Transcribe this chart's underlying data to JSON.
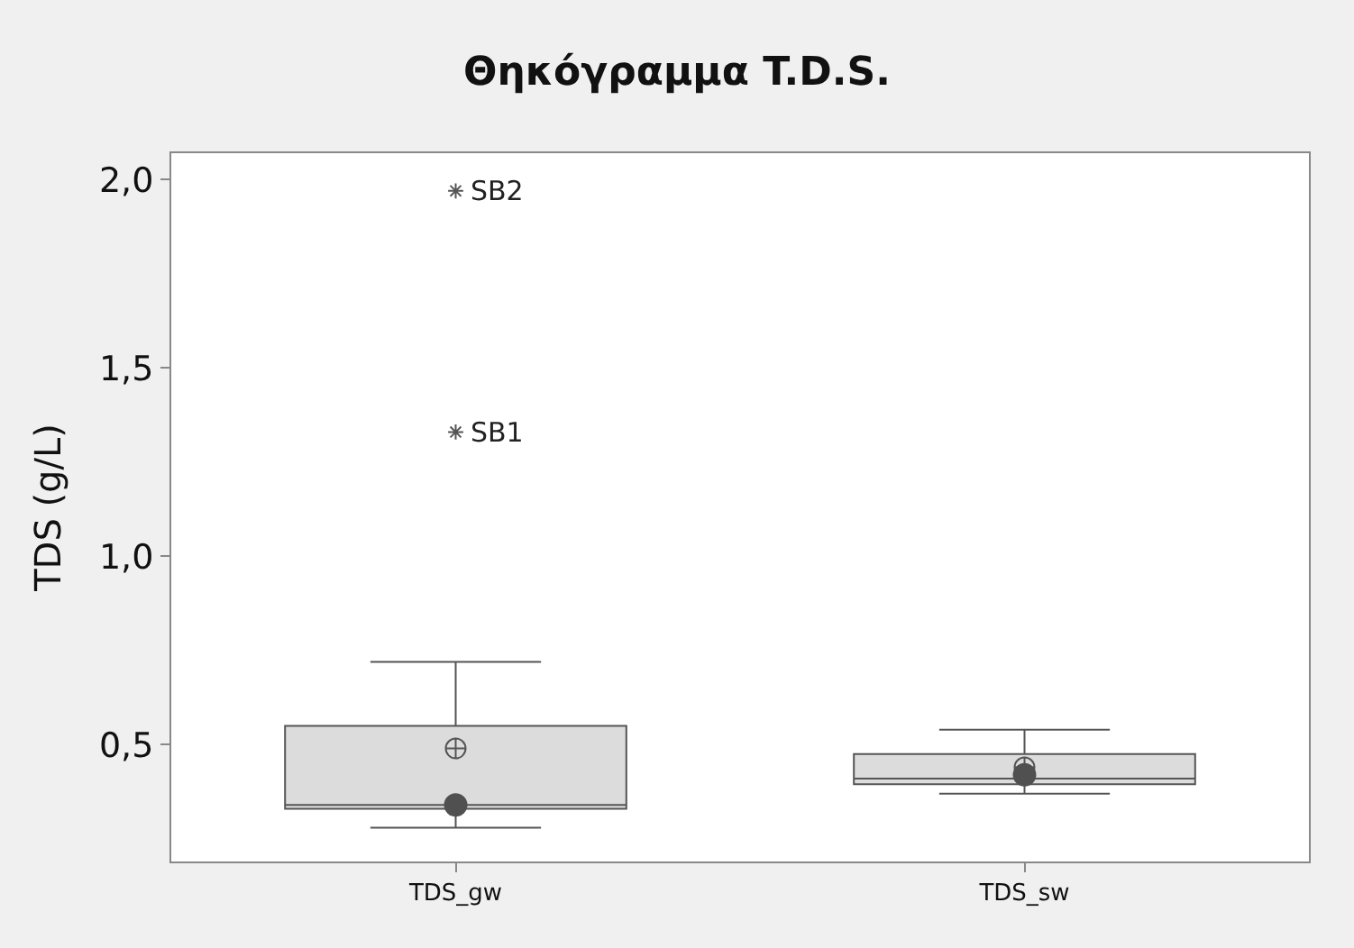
{
  "chart_data": {
    "type": "box",
    "title": "Θηκόγραμμα T.D.S.",
    "ylabel": "TDS (g/L)",
    "categories": [
      "TDS_gw",
      "TDS_sw"
    ],
    "boxes": [
      {
        "low": 0.28,
        "q1": 0.33,
        "median": 0.34,
        "q3": 0.55,
        "high": 0.72,
        "mean": 0.49,
        "outliers": [
          1.97,
          1.33
        ]
      },
      {
        "low": 0.37,
        "q1": 0.395,
        "median": 0.41,
        "q3": 0.475,
        "high": 0.54,
        "mean": 0.44
      }
    ],
    "series": [
      {
        "type": "scatter",
        "x": [
          "TDS_gw",
          "TDS_sw"
        ],
        "values": [
          0.34,
          0.42
        ],
        "color": "#505050"
      }
    ],
    "annotations": [
      "SB2",
      "SB1"
    ],
    "color": "#dcdcdc",
    "ylim": [
      0.19,
      2.07
    ],
    "yticks": [
      {
        "value": 0.5,
        "label": "0,5"
      },
      {
        "value": 1.0,
        "label": "1,0"
      },
      {
        "value": 1.5,
        "label": "1,5"
      },
      {
        "value": 2.0,
        "label": "2,0"
      }
    ]
  }
}
